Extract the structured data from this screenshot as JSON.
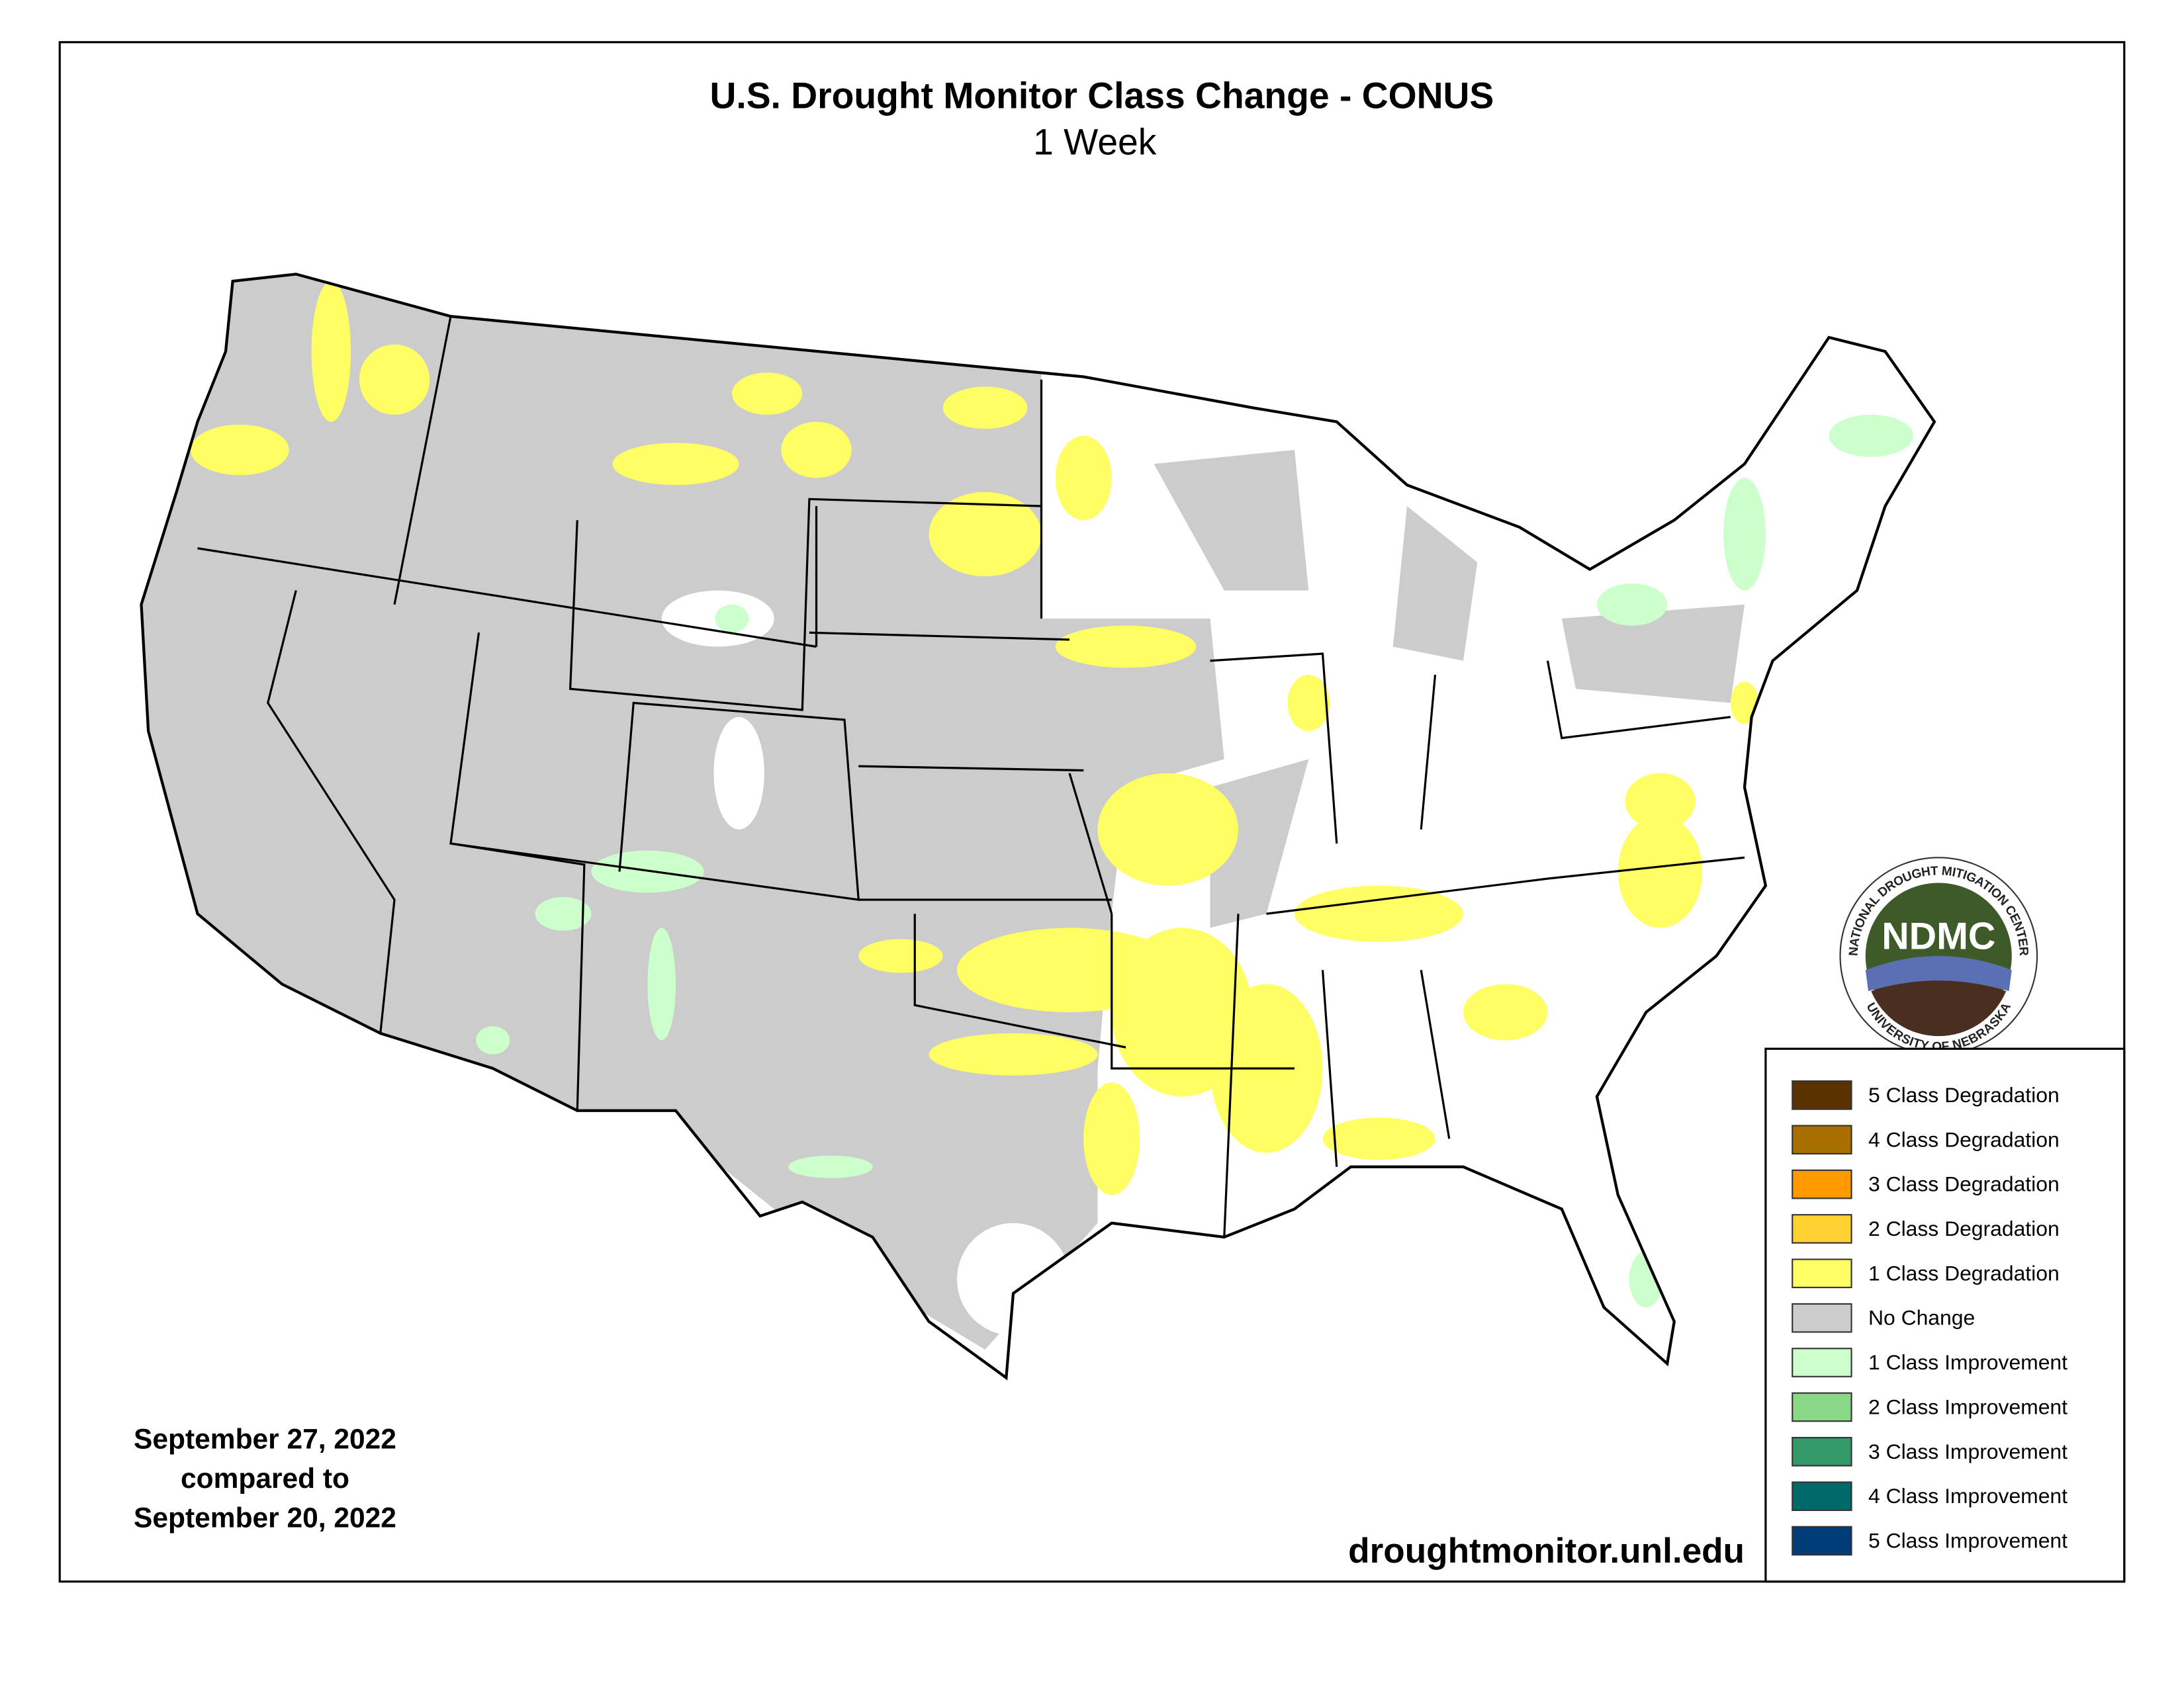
{
  "header": {
    "title": "U.S. Drought Monitor Class Change - CONUS",
    "subtitle": "1 Week"
  },
  "dates": [
    "September 27, 2022",
    "compared to",
    "September 20, 2022"
  ],
  "source": "droughtmonitor.unl.edu",
  "logo": {
    "abbr": "NDMC",
    "ring_top": "NATIONAL DROUGHT MITIGATION CENTER",
    "ring_bottom": "UNIVERSITY OF NEBRASKA"
  },
  "legend": [
    {
      "label": "5 Class Degradation",
      "color": "#5a3200"
    },
    {
      "label": "4 Class Degradation",
      "color": "#a86e00"
    },
    {
      "label": "3 Class Degradation",
      "color": "#ff9a00"
    },
    {
      "label": "2 Class Degradation",
      "color": "#ffd232"
    },
    {
      "label": "1 Class Degradation",
      "color": "#ffff64"
    },
    {
      "label": "No Change",
      "color": "#cccccc"
    },
    {
      "label": "1 Class Improvement",
      "color": "#ccffcc"
    },
    {
      "label": "2 Class Improvement",
      "color": "#88d888"
    },
    {
      "label": "3 Class Improvement",
      "color": "#339966"
    },
    {
      "label": "4 Class Improvement",
      "color": "#006a6a"
    },
    {
      "label": "5 Class Improvement",
      "color": "#003c78"
    }
  ]
}
